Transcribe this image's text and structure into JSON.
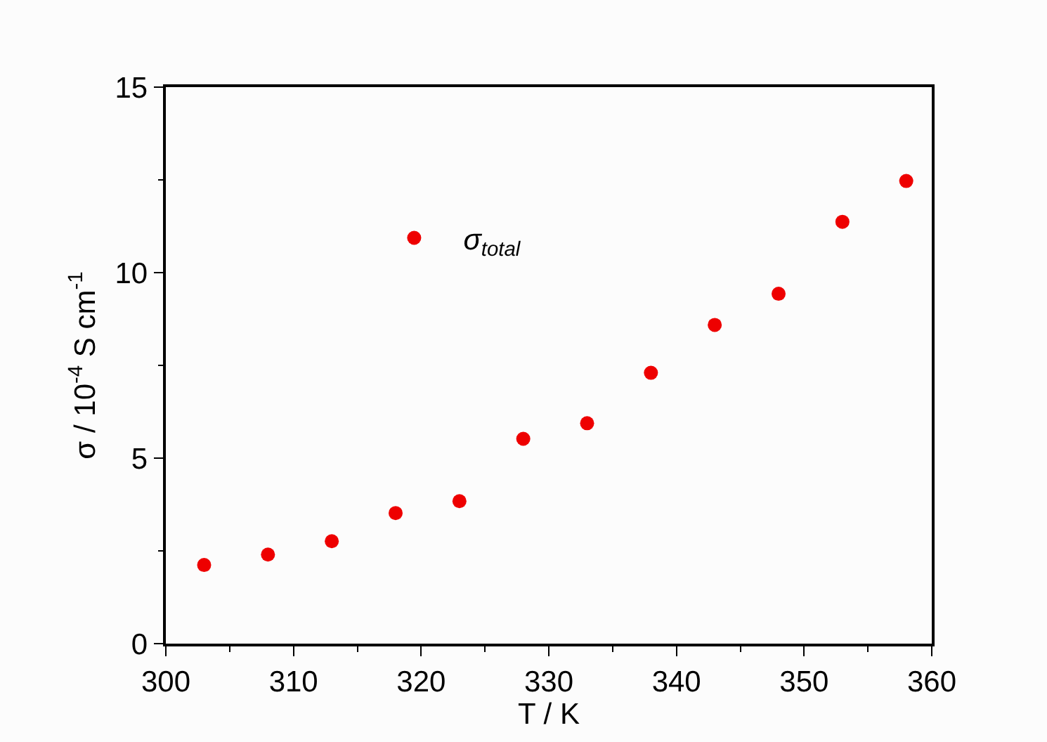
{
  "chart_data": {
    "type": "scatter",
    "xlabel": "T / K",
    "ylabel": "σ / 10$^{-4}$ S cm$^{-1}$",
    "x": [
      303,
      308,
      313,
      318,
      323,
      328,
      333,
      338,
      343,
      348,
      353,
      358
    ],
    "series": [
      {
        "name": "σ$_{total}$",
        "color": "#ee0000",
        "values": [
          2.12,
          2.4,
          2.76,
          3.52,
          3.84,
          5.52,
          5.94,
          7.3,
          8.59,
          9.43,
          11.37,
          12.47
        ]
      }
    ],
    "xlim": [
      300,
      360
    ],
    "xticks": [
      300,
      310,
      320,
      330,
      340,
      350,
      360
    ],
    "ylim": [
      0,
      15
    ],
    "yticks": [
      0,
      5,
      10,
      15
    ],
    "legend": "top left",
    "marker": "circle"
  }
}
